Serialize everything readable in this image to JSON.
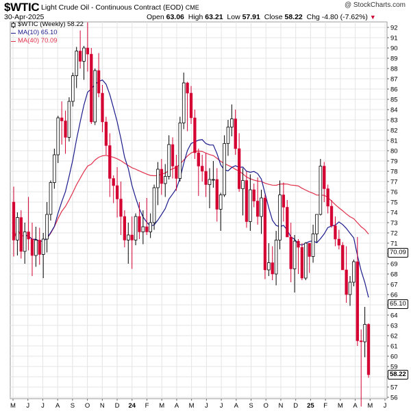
{
  "header": {
    "ticker": "$WTIC",
    "subtitle": "Light Crude Oil - Continuous Contract (EOD)",
    "exchange": "CME",
    "date": "30-Apr-2025",
    "open_label": "Open",
    "open": "63.06",
    "high_label": "High",
    "high": "63.21",
    "low_label": "Low",
    "low": "57.91",
    "close_label": "Close",
    "close": "58.22",
    "chg_label": "Chg",
    "chg": "-4.80 (-7.62%)",
    "brand": "@ StockCharts.com"
  },
  "legend": {
    "main": "$WTIC (Weekly) 58.22",
    "ma10": "MA(10) 65.10",
    "ma40": "MA(40) 70.09"
  },
  "price_tags": {
    "ma40": "70.09",
    "ma10": "65.10",
    "last": "58.22"
  },
  "colors": {
    "up": "#ffffff",
    "down": "#d40032",
    "outline": "#000000",
    "ma10": "#1a1a8c",
    "ma40": "#e0304a",
    "grid": "#e4e4e4"
  },
  "chart_data": {
    "type": "candlestick",
    "title": "$WTIC Light Crude Oil - Continuous Contract (EOD)",
    "interval": "weekly",
    "ylim": [
      56,
      92
    ],
    "y_ticks": [
      56,
      57,
      58,
      59,
      60,
      61,
      62,
      63,
      64,
      65,
      66,
      67,
      68,
      69,
      70,
      71,
      72,
      73,
      74,
      75,
      76,
      77,
      78,
      79,
      80,
      81,
      82,
      83,
      84,
      85,
      86,
      87,
      88,
      89,
      90,
      91,
      92
    ],
    "x_labels": [
      "M",
      "J",
      "J",
      "A",
      "S",
      "O",
      "N",
      "D",
      "24",
      "F",
      "M",
      "A",
      "M",
      "J",
      "J",
      "A",
      "S",
      "O",
      "N",
      "D",
      "25",
      "F",
      "M",
      "A",
      "M",
      "J"
    ],
    "grid": true,
    "series": [
      {
        "name": "$WTIC (Weekly)",
        "kind": "ohlc",
        "last": 58.22,
        "candles": [
          [
            75.0,
            76.5,
            69.7,
            71.3
          ],
          [
            71.3,
            74.0,
            69.8,
            73.5
          ],
          [
            73.5,
            74.2,
            69.5,
            70.2
          ],
          [
            70.2,
            73.0,
            69.0,
            72.1
          ],
          [
            72.1,
            75.5,
            70.3,
            71.4
          ],
          [
            71.4,
            73.0,
            67.8,
            69.8
          ],
          [
            69.8,
            72.6,
            68.7,
            71.3
          ],
          [
            71.3,
            72.5,
            68.9,
            69.9
          ],
          [
            69.9,
            72.0,
            67.6,
            71.4
          ],
          [
            71.4,
            75.0,
            70.1,
            73.8
          ],
          [
            73.8,
            77.1,
            73.2,
            76.9
          ],
          [
            76.9,
            80.2,
            76.3,
            79.6
          ],
          [
            79.6,
            83.4,
            78.8,
            83.2
          ],
          [
            83.2,
            84.8,
            80.6,
            82.9
          ],
          [
            82.9,
            83.9,
            79.7,
            81.3
          ],
          [
            81.3,
            85.2,
            80.9,
            84.8
          ],
          [
            84.8,
            87.6,
            84.3,
            87.3
          ],
          [
            87.3,
            90.1,
            86.1,
            89.7
          ],
          [
            89.7,
            91.7,
            88.0,
            88.7
          ],
          [
            88.7,
            90.2,
            86.9,
            90.0
          ],
          [
            90.0,
            92.5,
            87.7,
            89.4
          ],
          [
            89.4,
            90.0,
            82.6,
            82.8
          ],
          [
            82.8,
            88.0,
            82.5,
            87.8
          ],
          [
            87.8,
            89.5,
            85.2,
            85.6
          ],
          [
            85.6,
            86.4,
            81.8,
            82.8
          ],
          [
            82.8,
            83.3,
            79.6,
            80.5
          ],
          [
            80.5,
            81.7,
            75.5,
            77.3
          ],
          [
            77.3,
            77.6,
            74.9,
            76.6
          ],
          [
            76.6,
            78.4,
            73.5,
            75.3
          ],
          [
            75.3,
            77.0,
            71.8,
            73.6
          ],
          [
            73.6,
            74.2,
            70.6,
            71.3
          ],
          [
            71.3,
            73.0,
            69.0,
            71.8
          ],
          [
            71.8,
            73.6,
            68.5,
            71.3
          ],
          [
            71.3,
            73.9,
            70.8,
            73.6
          ],
          [
            73.6,
            75.0,
            71.4,
            72.1
          ],
          [
            72.1,
            74.2,
            70.9,
            72.6
          ],
          [
            72.6,
            75.4,
            71.8,
            72.1
          ],
          [
            72.1,
            73.9,
            71.5,
            73.0
          ],
          [
            73.0,
            76.7,
            72.3,
            76.4
          ],
          [
            76.4,
            78.9,
            74.7,
            78.2
          ],
          [
            78.2,
            79.2,
            75.7,
            76.8
          ],
          [
            76.8,
            78.7,
            75.5,
            77.5
          ],
          [
            77.5,
            81.5,
            77.2,
            80.6
          ],
          [
            80.6,
            81.3,
            77.3,
            78.5
          ],
          [
            78.5,
            79.6,
            76.1,
            77.3
          ],
          [
            77.3,
            83.3,
            77.0,
            82.7
          ],
          [
            82.7,
            87.6,
            82.1,
            86.6
          ],
          [
            86.6,
            86.7,
            81.9,
            85.6
          ],
          [
            85.6,
            86.3,
            82.6,
            83.2
          ],
          [
            83.2,
            84.0,
            79.2,
            79.8
          ],
          [
            79.8,
            80.2,
            75.6,
            78.5
          ],
          [
            78.5,
            79.6,
            77.0,
            78.0
          ],
          [
            78.0,
            79.8,
            75.5,
            76.7
          ],
          [
            76.7,
            78.3,
            74.4,
            77.2
          ],
          [
            77.2,
            79.0,
            76.4,
            77.2
          ],
          [
            77.2,
            78.3,
            73.1,
            74.3
          ],
          [
            74.3,
            75.9,
            72.2,
            75.7
          ],
          [
            75.7,
            81.5,
            75.5,
            80.7
          ],
          [
            80.7,
            83.0,
            79.5,
            82.3
          ],
          [
            82.3,
            84.5,
            81.4,
            83.1
          ],
          [
            83.1,
            84.0,
            79.6,
            80.2
          ],
          [
            80.2,
            81.7,
            76.0,
            76.3
          ],
          [
            76.3,
            78.3,
            73.7,
            77.1
          ],
          [
            77.1,
            78.0,
            72.5,
            73.1
          ],
          [
            73.1,
            77.7,
            72.2,
            76.2
          ],
          [
            76.2,
            76.8,
            74.5,
            75.1
          ],
          [
            75.1,
            77.4,
            72.8,
            73.6
          ],
          [
            73.6,
            76.2,
            71.9,
            75.4
          ],
          [
            75.4,
            75.7,
            67.5,
            68.4
          ],
          [
            68.4,
            71.0,
            67.8,
            69.1
          ],
          [
            69.1,
            70.7,
            67.4,
            68.0
          ],
          [
            68.0,
            72.2,
            66.9,
            71.3
          ],
          [
            71.3,
            77.1,
            70.4,
            75.7
          ],
          [
            75.7,
            76.9,
            73.1,
            74.5
          ],
          [
            74.5,
            75.2,
            71.6,
            71.6
          ],
          [
            71.6,
            73.0,
            67.2,
            68.5
          ],
          [
            68.5,
            71.8,
            66.2,
            71.2
          ],
          [
            71.2,
            71.4,
            68.0,
            70.6
          ],
          [
            70.6,
            71.0,
            67.4,
            67.6
          ],
          [
            67.6,
            71.1,
            67.4,
            71.0
          ],
          [
            71.0,
            70.9,
            68.1,
            69.7
          ],
          [
            69.7,
            72.8,
            69.1,
            71.9
          ],
          [
            71.9,
            73.5,
            71.1,
            73.8
          ],
          [
            73.8,
            79.2,
            73.7,
            78.5
          ],
          [
            78.5,
            78.9,
            75.0,
            76.3
          ],
          [
            76.3,
            76.7,
            73.9,
            74.6
          ],
          [
            74.6,
            75.2,
            72.5,
            72.7
          ],
          [
            72.7,
            73.6,
            70.7,
            71.4
          ],
          [
            71.4,
            72.3,
            70.4,
            70.8
          ],
          [
            70.8,
            71.1,
            68.6,
            68.4
          ],
          [
            68.4,
            70.7,
            65.2,
            66.0
          ],
          [
            66.0,
            67.8,
            64.9,
            67.2
          ],
          [
            67.2,
            69.4,
            66.8,
            69.2
          ],
          [
            69.2,
            71.6,
            61.0,
            61.5
          ],
          [
            61.5,
            62.6,
            55.1,
            61.4
          ],
          [
            61.4,
            64.8,
            59.9,
            63.1
          ],
          [
            63.1,
            63.2,
            57.9,
            58.2
          ]
        ]
      },
      {
        "name": "MA(10)",
        "kind": "line",
        "last": 65.1
      },
      {
        "name": "MA(40)",
        "kind": "line",
        "last": 70.09
      }
    ]
  }
}
